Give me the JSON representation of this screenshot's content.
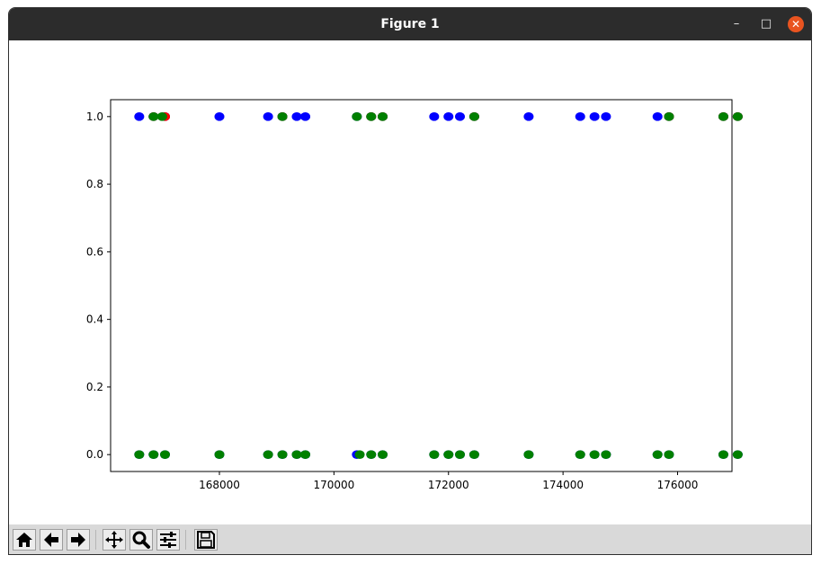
{
  "window": {
    "title": "Figure 1",
    "controls": {
      "minimize": "–",
      "maximize": "□",
      "close": "✕"
    }
  },
  "toolbar": {
    "buttons": [
      {
        "name": "home-button",
        "icon": "home-icon"
      },
      {
        "name": "back-button",
        "icon": "arrow-left-icon"
      },
      {
        "name": "forward-button",
        "icon": "arrow-right-icon"
      },
      {
        "name": "pan-button",
        "icon": "move-icon"
      },
      {
        "name": "zoom-button",
        "icon": "magnifier-icon"
      },
      {
        "name": "configure-subplots-button",
        "icon": "sliders-icon"
      },
      {
        "name": "save-button",
        "icon": "floppy-disk-icon"
      }
    ]
  },
  "chart_data": {
    "type": "scatter",
    "title": "",
    "xlabel": "",
    "ylabel": "",
    "xlim": [
      166100,
      176950
    ],
    "ylim": [
      -0.05,
      1.05
    ],
    "x_ticks": [
      168000,
      170000,
      172000,
      174000,
      176000
    ],
    "x_tick_labels": [
      "168000",
      "170000",
      "172000",
      "174000",
      "176000"
    ],
    "y_ticks": [
      0.0,
      0.2,
      0.4,
      0.6,
      0.8,
      1.0
    ],
    "y_tick_labels": [
      "0.0",
      "0.2",
      "0.4",
      "0.6",
      "0.8",
      "1.0"
    ],
    "grid": false,
    "series": [
      {
        "color": "#0000ff",
        "points": [
          [
            166600,
            1
          ],
          [
            166850,
            1
          ],
          [
            167050,
            1
          ],
          [
            168000,
            1
          ],
          [
            168850,
            1
          ],
          [
            169100,
            1
          ],
          [
            169350,
            1
          ],
          [
            169500,
            1
          ],
          [
            170400,
            1
          ],
          [
            170650,
            1
          ],
          [
            170850,
            1
          ],
          [
            171750,
            1
          ],
          [
            172000,
            1
          ],
          [
            172200,
            1
          ],
          [
            172450,
            1
          ],
          [
            173400,
            1
          ],
          [
            174300,
            1
          ],
          [
            174550,
            1
          ],
          [
            174750,
            1
          ],
          [
            175650,
            1
          ],
          [
            175850,
            1
          ],
          [
            176800,
            1
          ],
          [
            177050,
            1
          ],
          [
            166600,
            0
          ],
          [
            166850,
            0
          ],
          [
            167050,
            0
          ],
          [
            168000,
            0
          ],
          [
            168850,
            0
          ],
          [
            169100,
            0
          ],
          [
            169350,
            0
          ],
          [
            169500,
            0
          ],
          [
            170400,
            0
          ],
          [
            170650,
            0
          ],
          [
            170850,
            0
          ],
          [
            171750,
            0
          ],
          [
            172000,
            0
          ],
          [
            172200,
            0
          ],
          [
            172450,
            0
          ],
          [
            173400,
            0
          ],
          [
            174300,
            0
          ],
          [
            174550,
            0
          ],
          [
            174750,
            0
          ],
          [
            175650,
            0
          ],
          [
            175850,
            0
          ],
          [
            176800,
            0
          ],
          [
            177050,
            0
          ]
        ]
      },
      {
        "color": "#ff0000",
        "points": [
          [
            166850,
            1
          ],
          [
            167050,
            1
          ],
          [
            169100,
            1
          ],
          [
            170650,
            1
          ],
          [
            170850,
            1
          ],
          [
            172450,
            1
          ],
          [
            175850,
            1
          ],
          [
            176800,
            1
          ],
          [
            177050,
            1
          ]
        ]
      },
      {
        "color": "#008000",
        "points": [
          [
            166850,
            1
          ],
          [
            167000,
            1
          ],
          [
            169100,
            1
          ],
          [
            170400,
            1
          ],
          [
            170650,
            1
          ],
          [
            170850,
            1
          ],
          [
            172450,
            1
          ],
          [
            175850,
            1
          ],
          [
            176800,
            1
          ],
          [
            177050,
            1
          ],
          [
            166600,
            0
          ],
          [
            166850,
            0
          ],
          [
            167050,
            0
          ],
          [
            168000,
            0
          ],
          [
            168850,
            0
          ],
          [
            169100,
            0
          ],
          [
            169350,
            0
          ],
          [
            169500,
            0
          ],
          [
            170450,
            0
          ],
          [
            170650,
            0
          ],
          [
            170850,
            0
          ],
          [
            171750,
            0
          ],
          [
            172000,
            0
          ],
          [
            172200,
            0
          ],
          [
            172450,
            0
          ],
          [
            173400,
            0
          ],
          [
            174300,
            0
          ],
          [
            174550,
            0
          ],
          [
            174750,
            0
          ],
          [
            175650,
            0
          ],
          [
            175850,
            0
          ],
          [
            176800,
            0
          ],
          [
            177050,
            0
          ]
        ]
      }
    ]
  }
}
